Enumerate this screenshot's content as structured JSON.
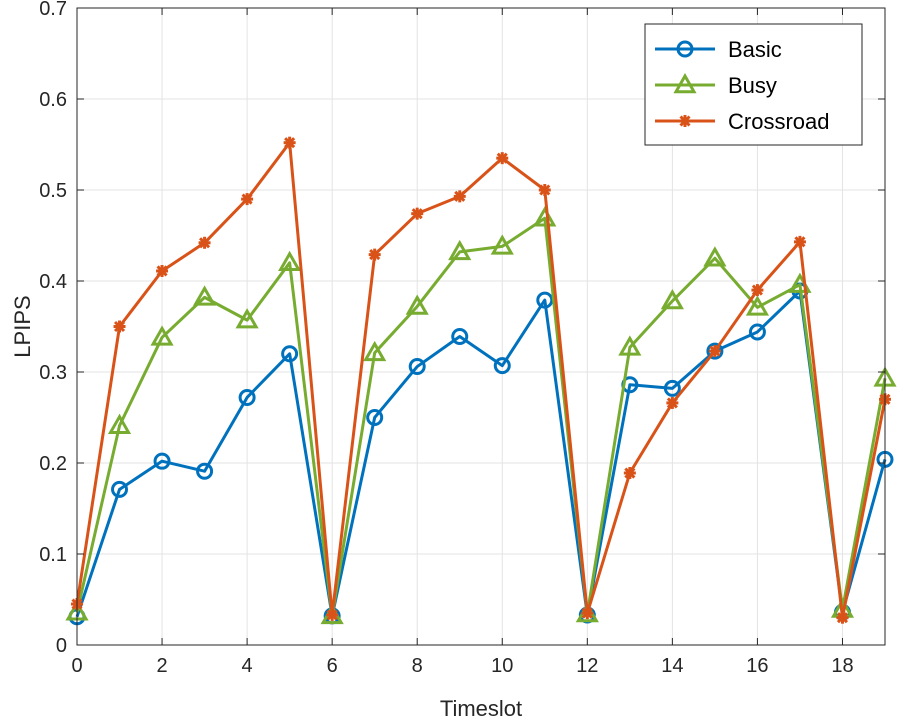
{
  "chart_data": {
    "type": "line",
    "title": "",
    "xlabel": "Timeslot",
    "ylabel": "LPIPS",
    "xlim": [
      0,
      19
    ],
    "ylim": [
      0,
      0.7
    ],
    "xticks": [
      0,
      2,
      4,
      6,
      8,
      10,
      12,
      14,
      16,
      18
    ],
    "xtick_labels": [
      "0",
      "2",
      "4",
      "6",
      "8",
      "10",
      "12",
      "14",
      "16",
      "18"
    ],
    "yticks": [
      0,
      0.1,
      0.2,
      0.3,
      0.4,
      0.5,
      0.6,
      0.7
    ],
    "ytick_labels": [
      "0",
      "0.1",
      "0.2",
      "0.3",
      "0.4",
      "0.5",
      "0.6",
      "0.7"
    ],
    "grid": true,
    "legend_position": "top-right",
    "x": [
      0,
      1,
      2,
      3,
      4,
      5,
      6,
      7,
      8,
      9,
      10,
      11,
      12,
      13,
      14,
      15,
      16,
      17,
      18,
      19
    ],
    "series": [
      {
        "name": "Basic",
        "color": "#0072BD",
        "marker": "circle",
        "values": [
          0.031,
          0.171,
          0.202,
          0.191,
          0.272,
          0.32,
          0.032,
          0.25,
          0.306,
          0.339,
          0.307,
          0.379,
          0.033,
          0.286,
          0.282,
          0.323,
          0.344,
          0.389,
          0.036,
          0.204
        ]
      },
      {
        "name": "Busy",
        "color": "#77AC30",
        "marker": "triangle",
        "values": [
          0.036,
          0.241,
          0.338,
          0.382,
          0.357,
          0.42,
          0.032,
          0.321,
          0.372,
          0.432,
          0.438,
          0.469,
          0.034,
          0.327,
          0.378,
          0.425,
          0.371,
          0.396,
          0.039,
          0.293
        ]
      },
      {
        "name": "Crossroad",
        "color": "#D95319",
        "marker": "asterisk",
        "values": [
          0.045,
          0.35,
          0.411,
          0.442,
          0.49,
          0.552,
          0.033,
          0.429,
          0.474,
          0.493,
          0.535,
          0.5,
          0.035,
          0.189,
          0.266,
          0.323,
          0.39,
          0.443,
          0.03,
          0.27
        ]
      }
    ]
  }
}
